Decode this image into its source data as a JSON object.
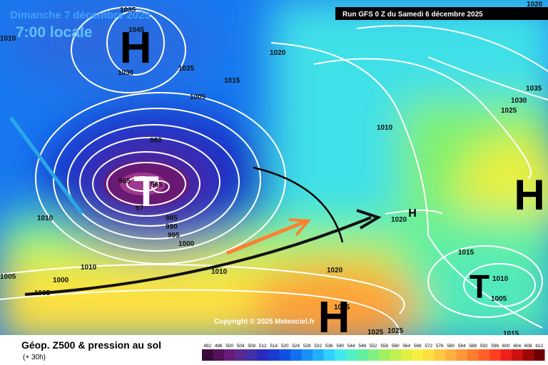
{
  "header": {
    "date": "Dimanche 7 décembre 2025",
    "time": "7:00 locale",
    "run": "Run GFS 0 Z du Samedi 6 décembre 2025"
  },
  "copyright": "Copyright © 2025 Meteociel.fr",
  "footer": {
    "title": "Géop. Z500 & pression au sol",
    "lead": "(+ 30h)"
  },
  "centers": [
    "H",
    "T",
    "H",
    "T",
    "H",
    "H"
  ],
  "isobar_labels": [
    "1035",
    "1045",
    "1030",
    "1025",
    "1020",
    "1015",
    "1005",
    "980",
    "965",
    "965",
    "97",
    "985",
    "990",
    "995",
    "1000",
    "1010",
    "1010",
    "1000",
    "1005",
    "1005",
    "1010",
    "1020",
    "1015",
    "1010",
    "1005",
    "1035",
    "1030",
    "1025",
    "1020",
    "1010",
    "1015",
    "1015",
    "1010",
    "1020",
    "1025",
    "1025"
  ],
  "scale": {
    "ticks": [
      492,
      496,
      500,
      504,
      508,
      512,
      516,
      520,
      524,
      528,
      532,
      536,
      540,
      544,
      548,
      552,
      556,
      560,
      564,
      568,
      572,
      576,
      580,
      584,
      588,
      592,
      596,
      600,
      604,
      608,
      612
    ],
    "colors": [
      "#3a0a3a",
      "#55115a",
      "#6a1a78",
      "#5a2a90",
      "#4030a8",
      "#2a2ac0",
      "#1a3ad0",
      "#1050e0",
      "#1070f0",
      "#1890f8",
      "#20b0ff",
      "#30d0ff",
      "#40e8f0",
      "#50f0c8",
      "#60f0a0",
      "#80f080",
      "#a0f060",
      "#c0f050",
      "#e0f040",
      "#f8f040",
      "#ffe040",
      "#ffc840",
      "#ffb040",
      "#ff9838",
      "#ff7c30",
      "#ff6028",
      "#ff4020",
      "#f02018",
      "#d01010",
      "#a00808",
      "#700000"
    ]
  }
}
